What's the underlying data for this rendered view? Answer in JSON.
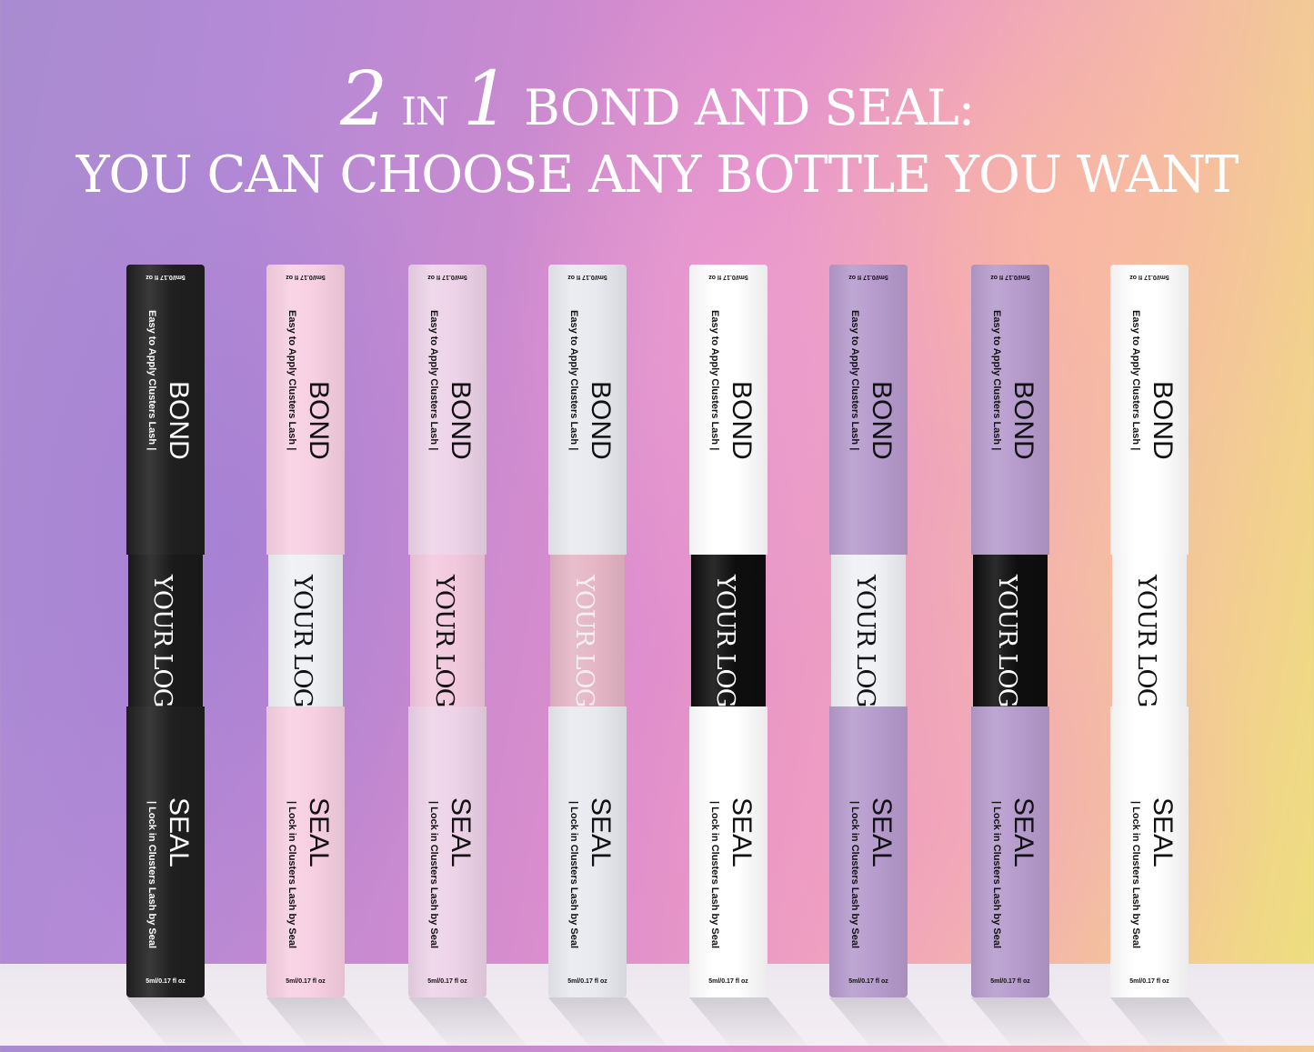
{
  "headline": {
    "num1": "2",
    "in": "IN",
    "num2": "1",
    "rest": "BOND AND SEAL:",
    "line2": "YOU CAN CHOOSE ANY BOTTLE YOU WANT"
  },
  "label": {
    "size": "5ml/0.17 fl oz",
    "bond": "BOND",
    "bond_sub": "Easy to Apply Clusters Lash |",
    "seal": "SEAL",
    "seal_sub": "| Lock in Clusters Lash by Seal",
    "logo": "YOUR LOGO"
  },
  "bottles": [
    {
      "body": "#1f1f1f",
      "cap": "#1a1a1a",
      "text": "#ffffff",
      "logo_text": "#ffffff"
    },
    {
      "body": "#f7d0e2",
      "cap": "#eef0f4",
      "text": "#111111",
      "logo_text": "#111111"
    },
    {
      "body": "#edd3e8",
      "cap": "#f2c9dd",
      "text": "#111111",
      "logo_text": "#111111"
    },
    {
      "body": "#e8eaef",
      "cap": "#e5b6c6",
      "text": "#111111",
      "logo_text": "#f4f0f2"
    },
    {
      "body": "#ffffff",
      "cap": "#0e0e0e",
      "text": "#111111",
      "logo_text": "#ffffff"
    },
    {
      "body": "#b69bcd",
      "cap": "#f0f1f5",
      "text": "#111111",
      "logo_text": "#111111"
    },
    {
      "body": "#b69bcd",
      "cap": "#0e0e0e",
      "text": "#111111",
      "logo_text": "#ffffff"
    },
    {
      "body": "#ffffff",
      "cap": "#ffffff",
      "text": "#111111",
      "logo_text": "#111111"
    }
  ]
}
